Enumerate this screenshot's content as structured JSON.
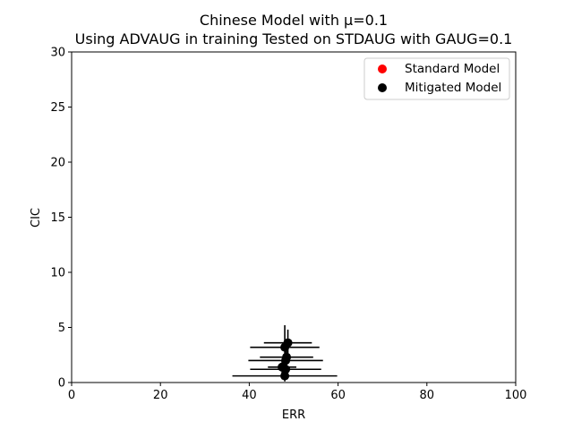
{
  "chart_data": {
    "type": "scatter",
    "title": "Chinese Model with μ=0.1",
    "subtitle": "Using ADVAUG in training Tested on STDAUG with GAUG=0.1",
    "xlabel": "ERR",
    "ylabel": "CIC",
    "xlim": [
      0,
      100
    ],
    "ylim": [
      0,
      30
    ],
    "xticks": [
      "0",
      "20",
      "40",
      "60",
      "80",
      "100"
    ],
    "yticks": [
      "0",
      "5",
      "10",
      "15",
      "20",
      "25",
      "30"
    ],
    "grid": false,
    "legend_position": "top-right",
    "series": [
      {
        "name": "Standard Model",
        "color": "#ff0000",
        "points": []
      },
      {
        "name": "Mitigated Model",
        "color": "#000000",
        "points": [
          {
            "x": 48.7,
            "y": 3.6,
            "xerr": 5.4,
            "yerr": 1.2
          },
          {
            "x": 48.0,
            "y": 3.2,
            "xerr": 7.8,
            "yerr": 2.0
          },
          {
            "x": 48.4,
            "y": 2.3,
            "xerr": 6.0,
            "yerr": 1.5
          },
          {
            "x": 48.2,
            "y": 2.0,
            "xerr": 8.4,
            "yerr": 1.2
          },
          {
            "x": 47.4,
            "y": 1.4,
            "xerr": 3.2,
            "yerr": 0.6
          },
          {
            "x": 48.2,
            "y": 1.2,
            "xerr": 8.0,
            "yerr": 0.8
          },
          {
            "x": 48.0,
            "y": 0.6,
            "xerr": 11.8,
            "yerr": 0.5
          }
        ]
      }
    ]
  }
}
